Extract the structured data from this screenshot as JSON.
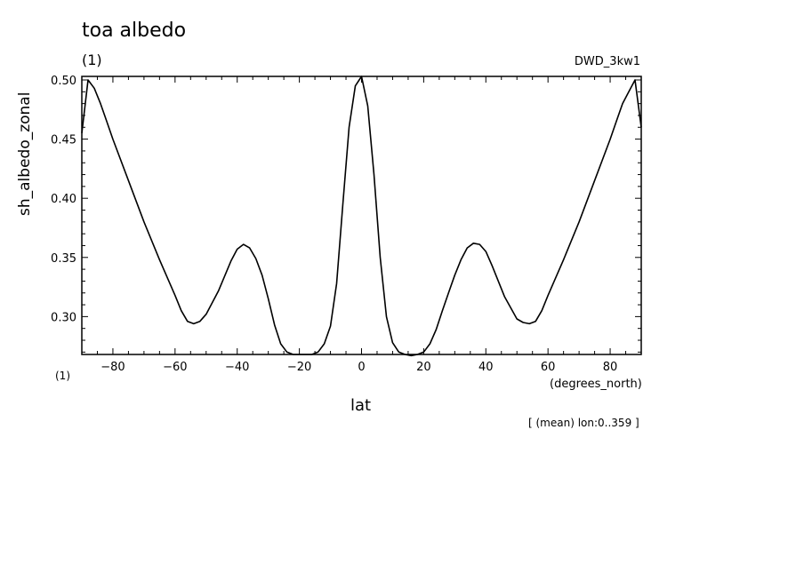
{
  "header": {
    "title": "toa albedo",
    "units": "(1)",
    "run_name": "DWD_3kw1"
  },
  "axes": {
    "ylabel": "sh_albedo_zonal",
    "xlabel": "lat",
    "x_units_left": "(1)",
    "x_units_right": "(degrees_north)"
  },
  "footnote": "[ (mean) lon:0..359 ]",
  "chart_data": {
    "type": "line",
    "title": "toa albedo",
    "xlabel": "lat",
    "ylabel": "sh_albedo_zonal",
    "xlim": [
      -90,
      90
    ],
    "ylim": [
      0.268,
      0.503
    ],
    "xticks": [
      -80,
      -60,
      -40,
      -20,
      0,
      20,
      40,
      60,
      80
    ],
    "xtick_labels": [
      "−80",
      "−60",
      "−40",
      "−20",
      "0",
      "20",
      "40",
      "60",
      "80"
    ],
    "yticks": [
      0.3,
      0.35,
      0.4,
      0.45,
      0.5
    ],
    "ytick_labels": [
      "0.30",
      "0.35",
      "0.40",
      "0.45",
      "0.50"
    ],
    "grid": false,
    "series": [
      {
        "x": [
          -90,
          -88,
          -86,
          -84,
          -82,
          -80,
          -75,
          -70,
          -65,
          -60,
          -58,
          -56,
          -54,
          -52,
          -50,
          -46,
          -42,
          -40,
          -38,
          -36,
          -34,
          -32,
          -30,
          -28,
          -26,
          -24,
          -22,
          -20,
          -18,
          -16,
          -14,
          -12,
          -10,
          -8,
          -6,
          -4,
          -2,
          0,
          2,
          4,
          6,
          8,
          10,
          12,
          14,
          16,
          18,
          20,
          22,
          24,
          26,
          28,
          30,
          32,
          34,
          36,
          38,
          40,
          42,
          46,
          50,
          52,
          54,
          56,
          58,
          60,
          65,
          70,
          75,
          80,
          82,
          84,
          86,
          88,
          90
        ],
        "y": [
          0.455,
          0.5,
          0.493,
          0.48,
          0.465,
          0.45,
          0.415,
          0.38,
          0.348,
          0.318,
          0.305,
          0.296,
          0.294,
          0.296,
          0.302,
          0.322,
          0.347,
          0.357,
          0.361,
          0.358,
          0.349,
          0.335,
          0.315,
          0.293,
          0.277,
          0.27,
          0.268,
          0.268,
          0.268,
          0.268,
          0.27,
          0.277,
          0.292,
          0.328,
          0.395,
          0.46,
          0.495,
          0.503,
          0.478,
          0.42,
          0.35,
          0.3,
          0.278,
          0.27,
          0.268,
          0.267,
          0.268,
          0.27,
          0.277,
          0.289,
          0.305,
          0.32,
          0.335,
          0.348,
          0.358,
          0.362,
          0.361,
          0.355,
          0.343,
          0.317,
          0.298,
          0.295,
          0.294,
          0.296,
          0.305,
          0.318,
          0.348,
          0.38,
          0.415,
          0.45,
          0.465,
          0.48,
          0.49,
          0.5,
          0.46
        ]
      }
    ]
  }
}
